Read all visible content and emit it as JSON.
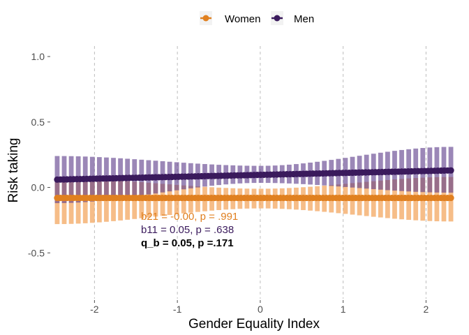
{
  "chart_data": {
    "type": "line",
    "xlabel": "Gender Equality Index",
    "ylabel": "Risk taking",
    "xlim": [
      -2.5,
      2.35
    ],
    "ylim": [
      -0.85,
      1.08
    ],
    "x_ticks": [
      -2,
      -1,
      0,
      1,
      2
    ],
    "x_tick_labels": [
      "-2",
      "-1",
      "0",
      "1",
      "2"
    ],
    "y_ticks": [
      -0.5,
      0.0,
      0.5,
      1.0
    ],
    "y_tick_labels": [
      "-0.5",
      "0.0",
      "0.5",
      "1.0"
    ],
    "grid": "vertical dashed at x ticks",
    "legend": {
      "position": "top",
      "entries": [
        "Women",
        "Men"
      ]
    },
    "x_range": [
      -2.45,
      2.3
    ],
    "series": [
      {
        "name": "Women",
        "color": "#E08020",
        "band_color": "#F2A45A",
        "line": [
          [
            -2.45,
            -0.08
          ],
          [
            2.3,
            -0.08
          ]
        ],
        "band_upper": [
          [
            -2.45,
            0.07
          ],
          [
            0.0,
            -0.01
          ],
          [
            2.3,
            0.08
          ]
        ],
        "band_lower": [
          [
            -2.45,
            -0.28
          ],
          [
            0.0,
            -0.16
          ],
          [
            2.3,
            -0.26
          ]
        ]
      },
      {
        "name": "Men",
        "color": "#3A1A5C",
        "band_color": "#5E3E8A",
        "line": [
          [
            -2.45,
            0.06
          ],
          [
            2.3,
            0.13
          ]
        ],
        "band_upper": [
          [
            -2.45,
            0.24
          ],
          [
            0.0,
            0.165
          ],
          [
            2.3,
            0.31
          ]
        ],
        "band_lower": [
          [
            -2.45,
            -0.12
          ],
          [
            0.0,
            0.035
          ],
          [
            2.3,
            -0.04
          ]
        ]
      }
    ],
    "annotations": [
      {
        "text": "b21 = -0.00, p = .991",
        "color": "#E08020",
        "bold": false
      },
      {
        "text": "b11 = 0.05, p = .638",
        "color": "#3A1A5C",
        "bold": false
      },
      {
        "text": "q_b = 0.05, p =.171",
        "color": "#000000",
        "bold": true
      }
    ]
  }
}
